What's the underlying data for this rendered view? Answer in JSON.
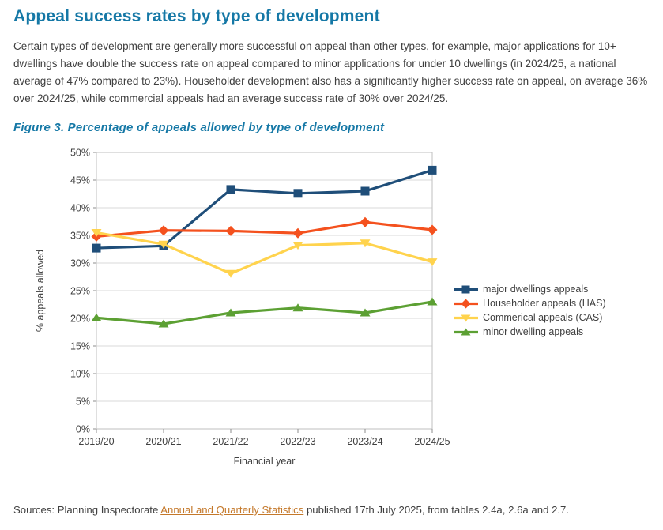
{
  "page": {
    "title": "Appeal success rates by type of development",
    "intro": "Certain types of development are generally more successful on appeal than other types, for example, major applications for 10+ dwellings have double the success rate on appeal compared to minor applications for under 10 dwellings (in 2024/25, a national average of 47% compared to 23%). Householder development also has a significantly higher success rate on appeal, on average 36% over 2024/25, while commercial appeals had an average success rate of 30% over 2024/25.",
    "figure_caption": "Figure 3. Percentage of appeals allowed by type of development",
    "sources": {
      "prefix": "Sources: Planning Inspectorate ",
      "link_text": "Annual and Quarterly Statistics",
      "suffix": " published 17th July 2025, from tables 2.4a, 2.6a and 2.7."
    }
  },
  "colors": {
    "heading_teal": "#1578A6",
    "body_text": "#3F3F3F",
    "link_orange": "#C4782A",
    "gridline": "#D9D9D9",
    "plot_border": "#BFBFBF",
    "tick": "#8E8E8E"
  },
  "chart_data": {
    "type": "line",
    "title": "",
    "xlabel": "Financial year",
    "ylabel": "% appeals allowed",
    "x": [
      "2019/20",
      "2020/21",
      "2021/22",
      "2022/23",
      "2023/24",
      "2024/25"
    ],
    "ylim": [
      0,
      50
    ],
    "ytick_step": 5,
    "ytick_suffix": "%",
    "grid": true,
    "legend_position": "right",
    "series": [
      {
        "name": "major dwellings appeals",
        "color": "#1F4E79",
        "marker": "square",
        "values": [
          32.7,
          33.1,
          43.3,
          42.6,
          43.0,
          46.8
        ]
      },
      {
        "name": "Householder appeals (HAS)",
        "color": "#F4511E",
        "marker": "diamond",
        "values": [
          34.8,
          35.9,
          35.8,
          35.4,
          37.4,
          36.0
        ]
      },
      {
        "name": "Commerical appeals (CAS)",
        "color": "#FFD34D",
        "marker": "triangle-down",
        "values": [
          35.5,
          33.4,
          28.1,
          33.2,
          33.6,
          30.2
        ]
      },
      {
        "name": "minor dwelling appeals",
        "color": "#5CA033",
        "marker": "triangle-up",
        "values": [
          20.1,
          19.0,
          21.0,
          21.9,
          21.0,
          23.0
        ]
      }
    ]
  }
}
